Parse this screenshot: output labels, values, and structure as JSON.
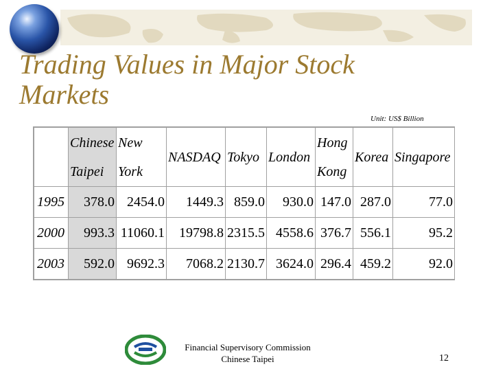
{
  "slide": {
    "title": "Trading Values in Major Stock Markets",
    "unit": "Unit: US$ Billion"
  },
  "table": {
    "headers": [
      {
        "line1": "",
        "line2": ""
      },
      {
        "line1": "Chinese",
        "line2": "Taipei"
      },
      {
        "line1": "New",
        "line2": "York"
      },
      {
        "line1": "NASDAQ",
        "line2": ""
      },
      {
        "line1": "Tokyo",
        "line2": ""
      },
      {
        "line1": "London",
        "line2": ""
      },
      {
        "line1": "Hong",
        "line2": "Kong"
      },
      {
        "line1": "Korea",
        "line2": ""
      },
      {
        "line1": "Singapore",
        "line2": ""
      }
    ],
    "rows": [
      {
        "year": "1995",
        "values": [
          "378.0",
          "2454.0",
          "1449.3",
          "859.0",
          "930.0",
          "147.0",
          "287.0",
          "77.0"
        ]
      },
      {
        "year": "2000",
        "values": [
          "993.3",
          "11060.1",
          "19798.8",
          "2315.5",
          "4558.6",
          "376.7",
          "556.1",
          "95.2"
        ]
      },
      {
        "year": "2003",
        "values": [
          "592.0",
          "9692.3",
          "7068.2",
          "2130.7",
          "3624.0",
          "296.4",
          "459.2",
          "92.0"
        ]
      }
    ]
  },
  "footer": {
    "line1": "Financial Supervisory Commission",
    "line2": "Chinese Taipei",
    "page_number": "12"
  },
  "colors": {
    "title": "#9c7a30",
    "highlight": "#d9d9d9",
    "logo_green": "#2e8b3a",
    "logo_blue": "#1f4fa0"
  },
  "icons": {
    "globe": "globe-icon",
    "logo": "fsc-logo-icon"
  }
}
